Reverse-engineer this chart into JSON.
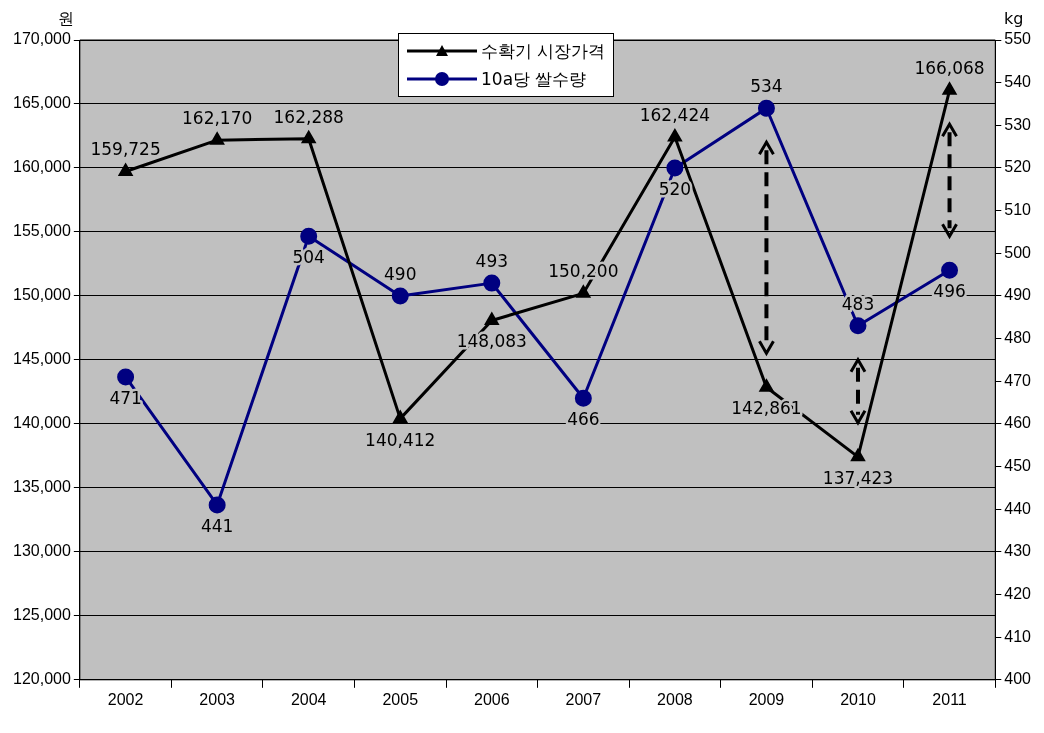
{
  "chart_data": {
    "type": "line",
    "categories": [
      "2002",
      "2003",
      "2004",
      "2005",
      "2006",
      "2007",
      "2008",
      "2009",
      "2010",
      "2011"
    ],
    "ylabel": "원",
    "y2label": "kg",
    "series": [
      {
        "name": "수확기 시장가격",
        "color": "#000000",
        "marker": "triangle",
        "values": [
          159725,
          162170,
          162288,
          140412,
          148083,
          150200,
          162424,
          142861,
          137423,
          166068
        ],
        "value_labels": [
          "159,725",
          "162,170",
          "162,288",
          "140,412",
          "148,083",
          "150,200",
          "162,424",
          "142,861",
          "137,423",
          "166,068"
        ]
      },
      {
        "name": "10a당 쌀수량",
        "color": "#000080",
        "marker": "circle",
        "axis": "y2",
        "values": [
          471,
          441,
          504,
          490,
          493,
          466,
          520,
          534,
          483,
          496
        ],
        "value_labels": [
          "471",
          "441",
          "504",
          "490",
          "493",
          "466",
          "520",
          "534",
          "483",
          "496"
        ]
      }
    ],
    "ylim": [
      120000,
      170000
    ],
    "yticks": [
      {
        "value": 120000,
        "label": "120,000"
      },
      {
        "value": 125000,
        "label": "125,000"
      },
      {
        "value": 130000,
        "label": "130,000"
      },
      {
        "value": 135000,
        "label": "135,000"
      },
      {
        "value": 140000,
        "label": "140,000"
      },
      {
        "value": 145000,
        "label": "145,000"
      },
      {
        "value": 150000,
        "label": "150,000"
      },
      {
        "value": 155000,
        "label": "155,000"
      },
      {
        "value": 160000,
        "label": "160,000"
      },
      {
        "value": 165000,
        "label": "165,000"
      },
      {
        "value": 170000,
        "label": "170,000"
      }
    ],
    "y2lim": [
      400,
      550
    ],
    "y2ticks": [
      400,
      410,
      420,
      430,
      440,
      450,
      460,
      470,
      480,
      490,
      500,
      510,
      520,
      530,
      540,
      550
    ],
    "grid": "y",
    "legend": "top"
  }
}
